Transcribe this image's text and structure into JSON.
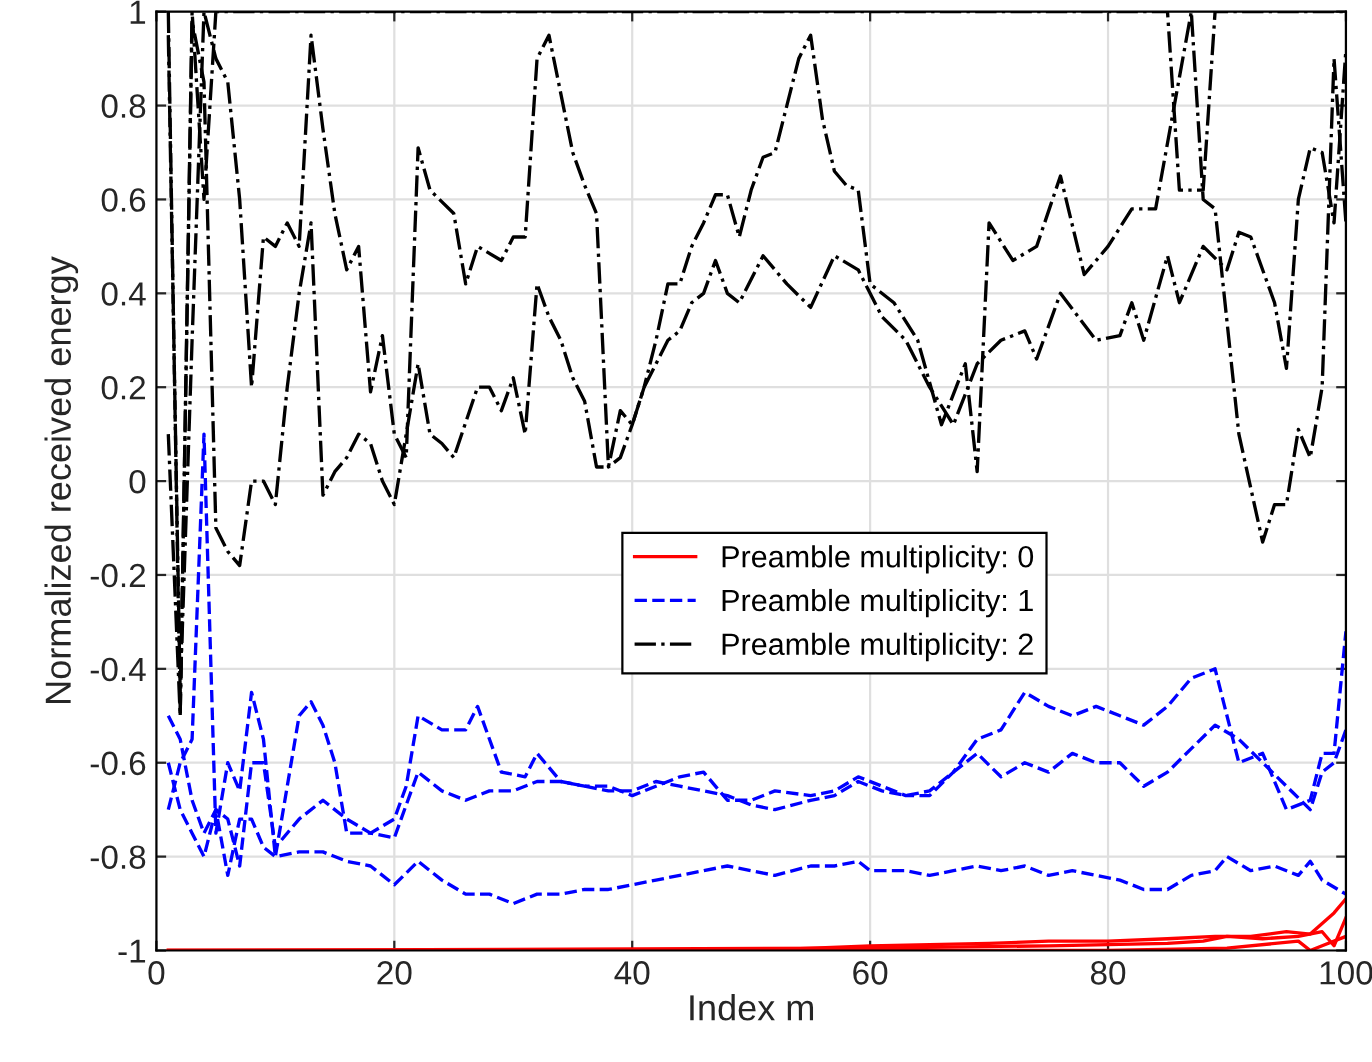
{
  "chart_data": {
    "type": "line",
    "xlabel": "Index m",
    "ylabel": "Normalized received energy",
    "xlim": [
      0,
      100
    ],
    "ylim": [
      -1,
      1
    ],
    "xticks": [
      0,
      20,
      40,
      60,
      80,
      100
    ],
    "yticks": [
      -1,
      -0.8,
      -0.6,
      -0.4,
      -0.2,
      0,
      0.2,
      0.4,
      0.6,
      0.8,
      1
    ],
    "grid": true,
    "legend": "center",
    "series": [
      {
        "name": "Preamble multiplicity: 0",
        "color": "#ff0000",
        "line_style": "solid",
        "x": [
          1,
          50,
          60,
          70,
          75,
          80,
          85,
          89,
          92,
          95,
          97,
          99,
          100
        ],
        "values": [
          -1,
          -1,
          -0.99,
          -0.985,
          -0.98,
          -0.98,
          -0.975,
          -0.97,
          -0.97,
          -0.96,
          -0.965,
          -0.92,
          -0.89
        ]
      },
      {
        "color": "#ff0000",
        "line_style": "solid",
        "x": [
          1,
          60,
          75,
          85,
          88,
          90,
          93,
          96,
          98,
          99,
          100
        ],
        "values": [
          -1,
          -0.995,
          -0.99,
          -0.985,
          -0.98,
          -0.97,
          -0.975,
          -0.97,
          -0.96,
          -0.99,
          -0.93
        ]
      },
      {
        "color": "#ff0000",
        "line_style": "solid",
        "x": [
          1,
          80,
          90,
          96,
          97,
          98,
          100
        ],
        "values": [
          -1,
          -1,
          -0.995,
          -0.98,
          -1,
          -0.99,
          -0.97
        ]
      },
      {
        "name": "Preamble multiplicity: 1",
        "color": "#0000ff",
        "line_style": "dashed",
        "x": [
          1,
          2,
          3,
          4,
          5,
          6,
          7,
          8,
          9,
          10,
          12,
          13,
          14,
          15,
          16,
          18,
          20,
          21,
          22,
          24,
          26,
          27,
          29,
          31,
          32,
          34,
          36,
          38,
          40,
          42,
          44,
          46,
          48,
          50,
          52,
          55,
          57,
          59,
          61,
          63,
          65,
          67,
          69,
          71,
          73,
          75,
          77,
          79,
          81,
          83,
          85,
          87,
          89,
          91,
          93,
          95,
          97,
          98,
          99,
          100
        ],
        "values": [
          -0.7,
          -0.6,
          -0.55,
          0.1,
          -0.75,
          -0.6,
          -0.66,
          -0.45,
          -0.55,
          -0.8,
          -0.5,
          -0.47,
          -0.52,
          -0.6,
          -0.75,
          -0.75,
          -0.72,
          -0.65,
          -0.5,
          -0.53,
          -0.53,
          -0.48,
          -0.62,
          -0.63,
          -0.58,
          -0.64,
          -0.65,
          -0.65,
          -0.67,
          -0.65,
          -0.63,
          -0.62,
          -0.68,
          -0.68,
          -0.66,
          -0.67,
          -0.66,
          -0.63,
          -0.65,
          -0.67,
          -0.67,
          -0.62,
          -0.55,
          -0.53,
          -0.45,
          -0.48,
          -0.5,
          -0.48,
          -0.5,
          -0.52,
          -0.48,
          -0.42,
          -0.4,
          -0.6,
          -0.58,
          -0.7,
          -0.68,
          -0.58,
          -0.58,
          -0.32
        ]
      },
      {
        "color": "#0000ff",
        "line_style": "dashed",
        "x": [
          1,
          2,
          3,
          4,
          5,
          6,
          7,
          8,
          9,
          10,
          12,
          14,
          16,
          18,
          20,
          22,
          24,
          26,
          28,
          30,
          32,
          34,
          36,
          38,
          40,
          42,
          44,
          46,
          48,
          50,
          52,
          55,
          57,
          59,
          61,
          63,
          65,
          67,
          69,
          71,
          73,
          75,
          77,
          79,
          81,
          83,
          85,
          87,
          89,
          91,
          93,
          95,
          97,
          98,
          99,
          100
        ],
        "values": [
          -0.5,
          -0.55,
          -0.68,
          -0.75,
          -0.7,
          -0.72,
          -0.82,
          -0.6,
          -0.6,
          -0.78,
          -0.72,
          -0.68,
          -0.72,
          -0.75,
          -0.76,
          -0.62,
          -0.66,
          -0.68,
          -0.66,
          -0.66,
          -0.64,
          -0.64,
          -0.65,
          -0.66,
          -0.66,
          -0.64,
          -0.65,
          -0.66,
          -0.67,
          -0.69,
          -0.7,
          -0.68,
          -0.67,
          -0.64,
          -0.66,
          -0.67,
          -0.66,
          -0.62,
          -0.58,
          -0.63,
          -0.6,
          -0.62,
          -0.58,
          -0.6,
          -0.6,
          -0.65,
          -0.62,
          -0.57,
          -0.52,
          -0.55,
          -0.6,
          -0.65,
          -0.7,
          -0.62,
          -0.6,
          -0.53
        ]
      },
      {
        "color": "#0000ff",
        "line_style": "dashed",
        "x": [
          1,
          2,
          3,
          4,
          5,
          6,
          7,
          8,
          9,
          10,
          12,
          14,
          16,
          18,
          20,
          22,
          24,
          26,
          28,
          30,
          32,
          34,
          36,
          38,
          40,
          42,
          44,
          46,
          48,
          50,
          52,
          55,
          57,
          59,
          60,
          63,
          65,
          67,
          69,
          71,
          73,
          75,
          77,
          79,
          81,
          83,
          85,
          87,
          89,
          90,
          92,
          94,
          96,
          97,
          98,
          100
        ],
        "values": [
          -0.6,
          -0.7,
          -0.75,
          -0.8,
          -0.7,
          -0.84,
          -0.72,
          -0.72,
          -0.78,
          -0.8,
          -0.79,
          -0.79,
          -0.81,
          -0.82,
          -0.86,
          -0.81,
          -0.85,
          -0.88,
          -0.88,
          -0.9,
          -0.88,
          -0.88,
          -0.87,
          -0.87,
          -0.86,
          -0.85,
          -0.84,
          -0.83,
          -0.82,
          -0.83,
          -0.84,
          -0.82,
          -0.82,
          -0.81,
          -0.83,
          -0.83,
          -0.84,
          -0.83,
          -0.82,
          -0.83,
          -0.82,
          -0.84,
          -0.83,
          -0.84,
          -0.85,
          -0.87,
          -0.87,
          -0.84,
          -0.83,
          -0.8,
          -0.83,
          -0.82,
          -0.84,
          -0.81,
          -0.85,
          -0.88
        ]
      },
      {
        "name": "Preamble multiplicity: 2",
        "color": "#000000",
        "line_style": "dashdot",
        "x": [
          1,
          2,
          3,
          4,
          5,
          6,
          85,
          86,
          88,
          89,
          100
        ],
        "values": [
          1,
          -0.5,
          1,
          0.6,
          1,
          1,
          1,
          0.62,
          0.62,
          1,
          1
        ]
      },
      {
        "color": "#000000",
        "line_style": "dashdot",
        "x": [
          1,
          2,
          3,
          4,
          5,
          6,
          7,
          8,
          9,
          10,
          11,
          12,
          13,
          14,
          15,
          16,
          17,
          18,
          19,
          20,
          21,
          22,
          23,
          25,
          26,
          27,
          29,
          30,
          31,
          32,
          33,
          35,
          36,
          37,
          38,
          39,
          40,
          41,
          42,
          43,
          44,
          45,
          46,
          47,
          48,
          49,
          50,
          51,
          52,
          53,
          54,
          55,
          56,
          57,
          58,
          59,
          60,
          62,
          64,
          66,
          68,
          69,
          70,
          72,
          74,
          76,
          78,
          80,
          82,
          84,
          86,
          87,
          88,
          89,
          91,
          93,
          94,
          95,
          96,
          97,
          98,
          99,
          100
        ],
        "values": [
          0.95,
          -0.45,
          0.3,
          1,
          0.9,
          0.85,
          0.6,
          0.2,
          0.52,
          0.5,
          0.55,
          0.5,
          0.95,
          0.75,
          0.57,
          0.45,
          0.5,
          0.19,
          0.31,
          0.1,
          0.05,
          0.71,
          0.62,
          0.57,
          0.42,
          0.5,
          0.47,
          0.52,
          0.52,
          0.9,
          0.95,
          0.7,
          0.63,
          0.57,
          0.03,
          0.05,
          0.12,
          0.2,
          0.3,
          0.42,
          0.42,
          0.5,
          0.55,
          0.61,
          0.61,
          0.52,
          0.62,
          0.69,
          0.7,
          0.8,
          0.9,
          0.95,
          0.77,
          0.66,
          0.63,
          0.62,
          0.42,
          0.38,
          0.3,
          0.12,
          0.25,
          0.02,
          0.55,
          0.47,
          0.5,
          0.65,
          0.44,
          0.5,
          0.58,
          0.58,
          0.86,
          1,
          0.6,
          0.58,
          0.1,
          -0.13,
          -0.05,
          -0.05,
          0.11,
          0.05,
          0.2,
          0.9,
          0.55
        ]
      },
      {
        "color": "#000000",
        "line_style": "dashdot",
        "x": [
          1,
          2,
          3,
          4,
          5,
          6,
          7,
          8,
          9,
          10,
          11,
          12,
          13,
          14,
          15,
          16,
          17,
          18,
          19,
          20,
          21,
          22,
          23,
          24,
          25,
          27,
          28,
          29,
          30,
          31,
          32,
          33,
          34,
          35,
          36,
          37,
          38,
          39,
          40,
          41,
          42,
          43,
          44,
          45,
          46,
          47,
          48,
          49,
          51,
          53,
          55,
          57,
          59,
          61,
          63,
          65,
          67,
          69,
          71,
          73,
          74,
          76,
          79,
          81,
          82,
          83,
          85,
          86,
          88,
          90,
          91,
          92,
          94,
          95,
          96,
          97,
          98,
          99,
          100
        ],
        "values": [
          0.1,
          -0.5,
          0.98,
          0.85,
          -0.1,
          -0.15,
          -0.18,
          0.0,
          0.0,
          -0.05,
          0.2,
          0.4,
          0.55,
          -0.03,
          0.02,
          0.05,
          0.1,
          0.08,
          0.0,
          -0.05,
          0.1,
          0.25,
          0.1,
          0.08,
          0.05,
          0.2,
          0.2,
          0.15,
          0.22,
          0.1,
          0.42,
          0.35,
          0.3,
          0.22,
          0.17,
          0.03,
          0.03,
          0.15,
          0.12,
          0.2,
          0.25,
          0.3,
          0.32,
          0.38,
          0.4,
          0.47,
          0.4,
          0.38,
          0.48,
          0.42,
          0.37,
          0.48,
          0.45,
          0.35,
          0.3,
          0.2,
          0.12,
          0.25,
          0.3,
          0.32,
          0.26,
          0.4,
          0.3,
          0.31,
          0.38,
          0.3,
          0.48,
          0.38,
          0.5,
          0.45,
          0.53,
          0.52,
          0.38,
          0.24,
          0.6,
          0.71,
          0.7,
          0.55,
          0.92
        ]
      }
    ]
  }
}
